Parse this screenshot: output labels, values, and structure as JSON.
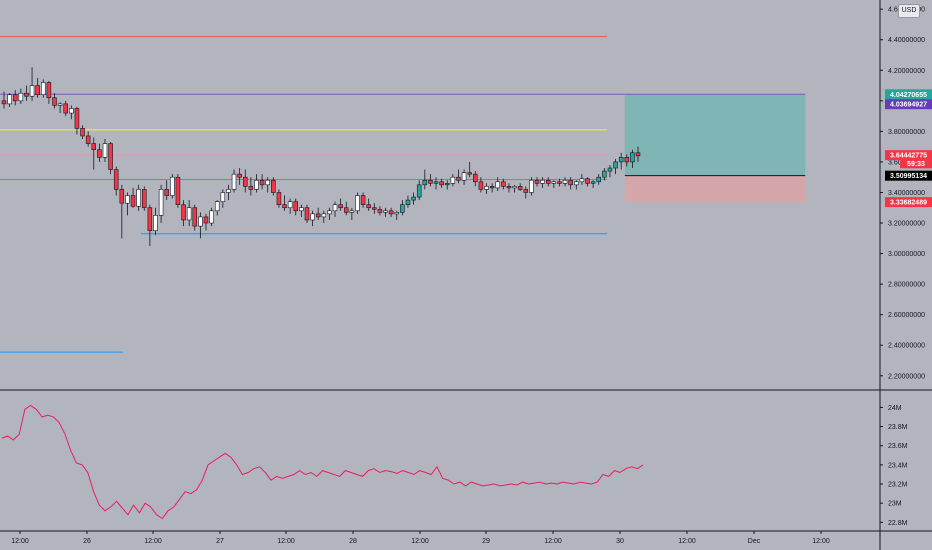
{
  "currency": "USD",
  "chart_data": [
    {
      "type": "candlestick",
      "title": "",
      "xlabel": "",
      "ylabel": "",
      "y_ticks": [
        "2.20000000",
        "2.40000000",
        "2.60000000",
        "2.80000000",
        "3.00000000",
        "3.20000000",
        "3.40000000",
        "3.60000000",
        "3.80000000",
        "4.00000000",
        "4.20000000",
        "4.40000000",
        "4.60000000"
      ],
      "ylim": [
        2.12,
        4.66
      ],
      "x_ticks": [
        "12:00",
        "26",
        "12:00",
        "27",
        "12:00",
        "28",
        "12:00",
        "29",
        "12:00",
        "30",
        "12:00",
        "Dec",
        "12:00"
      ],
      "grid": false,
      "candles": [
        [
          4.0,
          4.06,
          3.95,
          3.98
        ],
        [
          3.98,
          4.05,
          3.96,
          4.04
        ],
        [
          4.04,
          4.07,
          3.97,
          4.0
        ],
        [
          4.0,
          4.08,
          3.98,
          4.05
        ],
        [
          4.05,
          4.1,
          4.0,
          4.03
        ],
        [
          4.03,
          4.22,
          4.0,
          4.1
        ],
        [
          4.1,
          4.15,
          4.02,
          4.04
        ],
        [
          4.04,
          4.14,
          4.02,
          4.12
        ],
        [
          4.12,
          4.13,
          3.98,
          4.02
        ],
        [
          4.02,
          4.05,
          3.95,
          3.97
        ],
        [
          3.97,
          3.99,
          3.92,
          3.98
        ],
        [
          3.98,
          4.0,
          3.9,
          3.92
        ],
        [
          3.92,
          3.97,
          3.88,
          3.95
        ],
        [
          3.95,
          3.96,
          3.78,
          3.82
        ],
        [
          3.82,
          3.84,
          3.75,
          3.77
        ],
        [
          3.77,
          3.8,
          3.7,
          3.72
        ],
        [
          3.72,
          3.76,
          3.55,
          3.68
        ],
        [
          3.68,
          3.72,
          3.6,
          3.63
        ],
        [
          3.63,
          3.75,
          3.6,
          3.72
        ],
        [
          3.72,
          3.73,
          3.52,
          3.55
        ],
        [
          3.55,
          3.57,
          3.38,
          3.42
        ],
        [
          3.42,
          3.45,
          3.1,
          3.33
        ],
        [
          3.33,
          3.4,
          3.25,
          3.38
        ],
        [
          3.38,
          3.43,
          3.3,
          3.31
        ],
        [
          3.31,
          3.45,
          3.28,
          3.42
        ],
        [
          3.42,
          3.44,
          3.28,
          3.3
        ],
        [
          3.3,
          3.32,
          3.05,
          3.15
        ],
        [
          3.15,
          3.3,
          3.12,
          3.25
        ],
        [
          3.25,
          3.45,
          3.2,
          3.42
        ],
        [
          3.42,
          3.48,
          3.35,
          3.38
        ],
        [
          3.38,
          3.52,
          3.36,
          3.5
        ],
        [
          3.5,
          3.52,
          3.3,
          3.32
        ],
        [
          3.32,
          3.35,
          3.18,
          3.22
        ],
        [
          3.22,
          3.35,
          3.18,
          3.3
        ],
        [
          3.3,
          3.32,
          3.15,
          3.18
        ],
        [
          3.18,
          3.27,
          3.1,
          3.24
        ],
        [
          3.24,
          3.26,
          3.15,
          3.2
        ],
        [
          3.2,
          3.3,
          3.18,
          3.28
        ],
        [
          3.28,
          3.35,
          3.25,
          3.34
        ],
        [
          3.34,
          3.42,
          3.3,
          3.4
        ],
        [
          3.4,
          3.45,
          3.35,
          3.42
        ],
        [
          3.42,
          3.55,
          3.4,
          3.52
        ],
        [
          3.52,
          3.56,
          3.45,
          3.5
        ],
        [
          3.5,
          3.55,
          3.4,
          3.44
        ],
        [
          3.44,
          3.5,
          3.38,
          3.42
        ],
        [
          3.42,
          3.52,
          3.4,
          3.48
        ],
        [
          3.48,
          3.52,
          3.42,
          3.45
        ],
        [
          3.45,
          3.5,
          3.4,
          3.48
        ],
        [
          3.48,
          3.5,
          3.38,
          3.4
        ],
        [
          3.4,
          3.42,
          3.3,
          3.32
        ],
        [
          3.32,
          3.38,
          3.28,
          3.3
        ],
        [
          3.3,
          3.36,
          3.26,
          3.34
        ],
        [
          3.34,
          3.36,
          3.25,
          3.28
        ],
        [
          3.28,
          3.32,
          3.24,
          3.3
        ],
        [
          3.3,
          3.32,
          3.2,
          3.22
        ],
        [
          3.22,
          3.28,
          3.18,
          3.26
        ],
        [
          3.26,
          3.3,
          3.22,
          3.24
        ],
        [
          3.24,
          3.28,
          3.2,
          3.26
        ],
        [
          3.26,
          3.3,
          3.22,
          3.28
        ],
        [
          3.28,
          3.34,
          3.24,
          3.32
        ],
        [
          3.32,
          3.36,
          3.28,
          3.3
        ],
        [
          3.3,
          3.34,
          3.25,
          3.27
        ],
        [
          3.27,
          3.3,
          3.22,
          3.28
        ],
        [
          3.28,
          3.4,
          3.26,
          3.38
        ],
        [
          3.38,
          3.4,
          3.3,
          3.32
        ],
        [
          3.32,
          3.36,
          3.28,
          3.3
        ],
        [
          3.3,
          3.33,
          3.26,
          3.29
        ],
        [
          3.29,
          3.31,
          3.25,
          3.27
        ],
        [
          3.27,
          3.3,
          3.24,
          3.28
        ],
        [
          3.28,
          3.3,
          3.24,
          3.26
        ],
        [
          3.26,
          3.28,
          3.22,
          3.27
        ],
        [
          3.27,
          3.35,
          3.25,
          3.32
        ],
        [
          3.32,
          3.38,
          3.3,
          3.35
        ],
        [
          3.35,
          3.4,
          3.32,
          3.37
        ],
        [
          3.37,
          3.48,
          3.35,
          3.45
        ],
        [
          3.45,
          3.55,
          3.42,
          3.48
        ],
        [
          3.48,
          3.52,
          3.44,
          3.46
        ],
        [
          3.46,
          3.5,
          3.42,
          3.47
        ],
        [
          3.47,
          3.49,
          3.43,
          3.45
        ],
        [
          3.45,
          3.48,
          3.42,
          3.46
        ],
        [
          3.46,
          3.52,
          3.44,
          3.5
        ],
        [
          3.5,
          3.55,
          3.46,
          3.48
        ],
        [
          3.48,
          3.55,
          3.45,
          3.53
        ],
        [
          3.53,
          3.6,
          3.5,
          3.52
        ],
        [
          3.52,
          3.54,
          3.44,
          3.47
        ],
        [
          3.47,
          3.5,
          3.4,
          3.42
        ],
        [
          3.42,
          3.46,
          3.39,
          3.44
        ],
        [
          3.44,
          3.46,
          3.4,
          3.43
        ],
        [
          3.43,
          3.5,
          3.41,
          3.47
        ],
        [
          3.47,
          3.49,
          3.42,
          3.44
        ],
        [
          3.44,
          3.46,
          3.4,
          3.43
        ],
        [
          3.43,
          3.45,
          3.4,
          3.44
        ],
        [
          3.44,
          3.46,
          3.41,
          3.42
        ],
        [
          3.42,
          3.44,
          3.36,
          3.4
        ],
        [
          3.4,
          3.5,
          3.38,
          3.48
        ],
        [
          3.48,
          3.5,
          3.44,
          3.46
        ],
        [
          3.46,
          3.5,
          3.43,
          3.48
        ],
        [
          3.48,
          3.5,
          3.44,
          3.46
        ],
        [
          3.46,
          3.48,
          3.43,
          3.47
        ],
        [
          3.47,
          3.49,
          3.44,
          3.46
        ],
        [
          3.46,
          3.5,
          3.44,
          3.48
        ],
        [
          3.48,
          3.5,
          3.42,
          3.45
        ],
        [
          3.45,
          3.48,
          3.42,
          3.47
        ],
        [
          3.47,
          3.52,
          3.45,
          3.49
        ],
        [
          3.49,
          3.5,
          3.44,
          3.46
        ],
        [
          3.46,
          3.48,
          3.43,
          3.47
        ],
        [
          3.47,
          3.52,
          3.45,
          3.5
        ],
        [
          3.5,
          3.56,
          3.48,
          3.54
        ],
        [
          3.54,
          3.58,
          3.5,
          3.56
        ],
        [
          3.56,
          3.62,
          3.52,
          3.6
        ],
        [
          3.6,
          3.66,
          3.55,
          3.63
        ],
        [
          3.63,
          3.65,
          3.57,
          3.6
        ],
        [
          3.6,
          3.68,
          3.56,
          3.66
        ],
        [
          3.66,
          3.7,
          3.6,
          3.64
        ]
      ],
      "horizontal_lines": [
        {
          "value": 4.42,
          "color": "#ef5350",
          "from": 0.0,
          "to": 0.69
        },
        {
          "value": 4.0427,
          "color": "#7e57c2",
          "from": 0.0,
          "to": 0.915
        },
        {
          "value": 3.81,
          "color": "#ffeb3b",
          "from": 0.0,
          "to": 0.69
        },
        {
          "value": 3.645,
          "color": "#f48fb1",
          "from": 0.0,
          "to": 0.69
        },
        {
          "value": 3.485,
          "color": "#4caf50",
          "from": 0.0,
          "to": 0.69
        },
        {
          "value": 3.13,
          "color": "#2196f3",
          "from": 0.16,
          "to": 0.69
        },
        {
          "value": 2.355,
          "color": "#2196f3",
          "from": 0.0,
          "to": 0.14
        }
      ],
      "position_tool": {
        "from": 0.71,
        "to": 0.915,
        "entry": 3.5099,
        "target": 4.0427,
        "stop": 3.3368,
        "profit_color": "#80b5b5",
        "loss_color": "#d4a5a9"
      },
      "price_badges": [
        {
          "label": "4.04270655",
          "value": 4.0427,
          "bg": "#26a69a",
          "fg": "#ffffff"
        },
        {
          "label": "4.03694927",
          "value": 4.0369,
          "bg": "#673ab7",
          "fg": "#ffffff",
          "offset": 9
        },
        {
          "label": "3.64442775",
          "value": 3.6444,
          "bg": "#f23645",
          "fg": "#ffffff"
        },
        {
          "label": "59:33",
          "value": 3.591,
          "bg": "#f23645",
          "fg": "#ffffff",
          "align": "right"
        },
        {
          "label": "3.50995134",
          "value": 3.5099,
          "bg": "#000000",
          "fg": "#ffffff"
        },
        {
          "label": "3.33682489",
          "value": 3.3368,
          "bg": "#f23645",
          "fg": "#ffffff"
        }
      ]
    },
    {
      "type": "line",
      "title": "",
      "ylabel": "",
      "y_ticks": [
        "22.8M",
        "23M",
        "23.2M",
        "23.4M",
        "23.6M",
        "23.8M",
        "24M"
      ],
      "ylim": [
        22.72,
        24.14
      ],
      "line_color": "#e91e63",
      "values": [
        23.68,
        23.7,
        23.66,
        23.72,
        23.98,
        24.02,
        23.98,
        23.9,
        23.92,
        23.9,
        23.84,
        23.72,
        23.55,
        23.42,
        23.4,
        23.32,
        23.12,
        22.98,
        22.92,
        22.96,
        23.02,
        22.95,
        22.88,
        22.98,
        22.9,
        23.0,
        22.96,
        22.88,
        22.84,
        22.92,
        22.96,
        23.04,
        23.12,
        23.1,
        23.14,
        23.24,
        23.4,
        23.44,
        23.48,
        23.52,
        23.48,
        23.4,
        23.3,
        23.32,
        23.36,
        23.38,
        23.32,
        23.24,
        23.28,
        23.26,
        23.28,
        23.3,
        23.34,
        23.3,
        23.32,
        23.28,
        23.34,
        23.32,
        23.3,
        23.28,
        23.34,
        23.32,
        23.3,
        23.28,
        23.34,
        23.36,
        23.32,
        23.34,
        23.33,
        23.31,
        23.34,
        23.32,
        23.3,
        23.34,
        23.32,
        23.3,
        23.38,
        23.26,
        23.24,
        23.2,
        23.22,
        23.18,
        23.22,
        23.2,
        23.18,
        23.19,
        23.2,
        23.18,
        23.19,
        23.2,
        23.19,
        23.22,
        23.2,
        23.21,
        23.22,
        23.2,
        23.21,
        23.2,
        23.22,
        23.21,
        23.2,
        23.22,
        23.21,
        23.2,
        23.22,
        23.3,
        23.28,
        23.34,
        23.32,
        23.36,
        23.38,
        23.36,
        23.4
      ]
    }
  ]
}
